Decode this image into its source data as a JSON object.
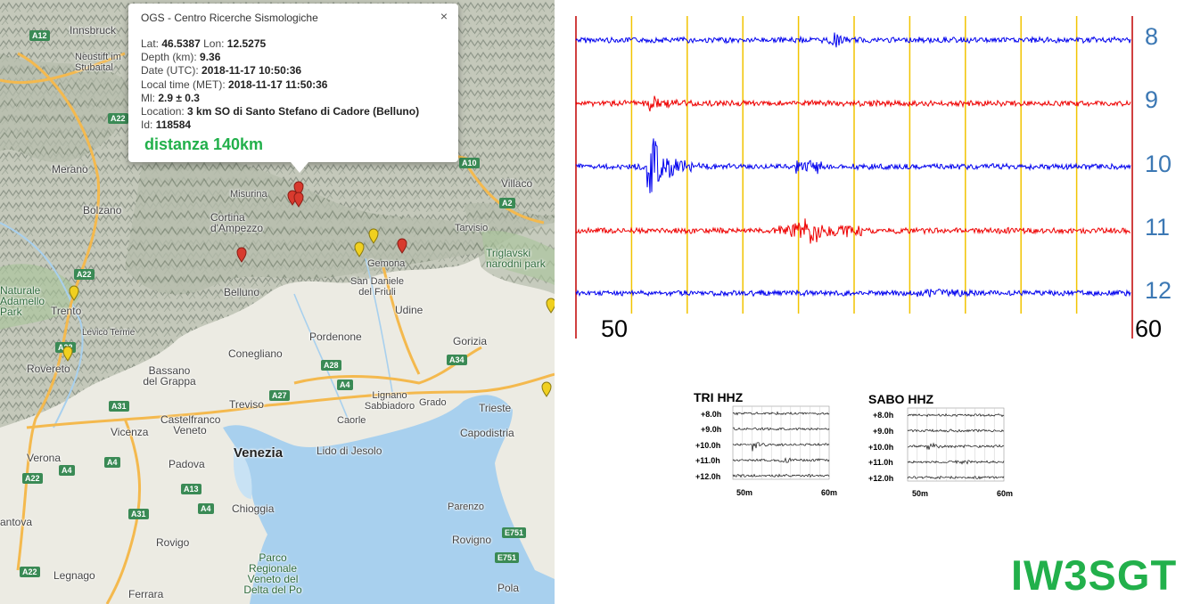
{
  "map": {
    "places": [
      {
        "name": "Innsbruck",
        "cls": ""
      },
      {
        "name": "Neustift im Stubaital",
        "cls": ""
      },
      {
        "name": "Merano",
        "cls": ""
      },
      {
        "name": "Bolzano",
        "cls": ""
      },
      {
        "name": "Cortina d'Ampezzo",
        "cls": ""
      },
      {
        "name": "Misurina",
        "cls": ""
      },
      {
        "name": "Villaco",
        "cls": ""
      },
      {
        "name": "Tarvisio",
        "cls": ""
      },
      {
        "name": "Triglavski narodni park",
        "cls": "green"
      },
      {
        "name": "Trento",
        "cls": ""
      },
      {
        "name": "Rovereto",
        "cls": ""
      },
      {
        "name": "Belluno",
        "cls": ""
      },
      {
        "name": "Gemona",
        "cls": ""
      },
      {
        "name": "San Daniele del Friuli",
        "cls": ""
      },
      {
        "name": "Udine",
        "cls": ""
      },
      {
        "name": "Pordenone",
        "cls": ""
      },
      {
        "name": "Conegliano",
        "cls": ""
      },
      {
        "name": "Gorizia",
        "cls": ""
      },
      {
        "name": "Bassano del Grappa",
        "cls": ""
      },
      {
        "name": "Treviso",
        "cls": ""
      },
      {
        "name": "Lignano Sabbiadoro",
        "cls": ""
      },
      {
        "name": "Grado",
        "cls": ""
      },
      {
        "name": "Trieste",
        "cls": ""
      },
      {
        "name": "Caorle",
        "cls": ""
      },
      {
        "name": "Castelfranco Veneto",
        "cls": ""
      },
      {
        "name": "Vicenza",
        "cls": ""
      },
      {
        "name": "Capodistria",
        "cls": ""
      },
      {
        "name": "Lido di Jesolo",
        "cls": ""
      },
      {
        "name": "Verona",
        "cls": ""
      },
      {
        "name": "Padova",
        "cls": ""
      },
      {
        "name": "Venezia",
        "cls": "big"
      },
      {
        "name": "Chioggia",
        "cls": ""
      },
      {
        "name": "Parenzo",
        "cls": ""
      },
      {
        "name": "Rovigno",
        "cls": ""
      },
      {
        "name": "Rovigo",
        "cls": ""
      },
      {
        "name": "Parco Regionale Veneto del Delta del Po",
        "cls": "green"
      },
      {
        "name": "Ferrara",
        "cls": ""
      },
      {
        "name": "Pola",
        "cls": ""
      },
      {
        "name": "Legnago",
        "cls": ""
      },
      {
        "name": "Naturale Adamello Park",
        "cls": "green"
      },
      {
        "name": "Levico Terme",
        "cls": ""
      },
      {
        "name": "antova",
        "cls": ""
      }
    ],
    "shields": [
      "A12",
      "A22",
      "A22",
      "A22",
      "A22",
      "A10",
      "A2",
      "A28",
      "A4",
      "A27",
      "A34",
      "A31",
      "A4",
      "A4",
      "A4",
      "A13",
      "A31",
      "A22",
      "E751",
      "E751"
    ],
    "colors": {
      "marker_red": "#d83a2e",
      "marker_yellow": "#f0d020",
      "sea": "#a8d0ee",
      "land": "#ebe9e0",
      "mountains": "#b8bdb0"
    },
    "info_window": {
      "title": "OGS - Centro Ricerche Sismologiche",
      "close": "×",
      "lat_label": "Lat:",
      "lat": "46.5387",
      "lon_label": "Lon:",
      "lon": "12.5275",
      "depth_label": "Depth (km):",
      "depth": "9.36",
      "date_label": "Date (UTC):",
      "date": "2018-11-17 10:50:36",
      "local_label": "Local time (MET):",
      "local": "2018-11-17 11:50:36",
      "ml_label": "Ml:",
      "ml": "2.9 ± 0.3",
      "location_label": "Location:",
      "location": "3 km SO di Santo Stefano di Cadore (Belluno)",
      "id_label": "Id:",
      "id": "118584",
      "distance": "distanza 140km"
    }
  },
  "seismogram": {
    "hour_labels": [
      "8",
      "9",
      "10",
      "11",
      "12"
    ],
    "trace_colors": [
      "#0000ee",
      "#ee0000",
      "#0000ee",
      "#ee0000",
      "#0000ee"
    ],
    "minute_start": "50",
    "minute_end": "60",
    "colors": {
      "minute_grid": "#f2c400",
      "edge_grid": "#c00000",
      "hour_label": "#3c78b4"
    }
  },
  "mini_plots": [
    {
      "title": "TRI HHZ",
      "rows": [
        "+8.0h",
        "+9.0h",
        "+10.0h",
        "+11.0h",
        "+12.0h"
      ],
      "x_start": "50m",
      "x_end": "60m"
    },
    {
      "title": "SABO HHZ",
      "rows": [
        "+8.0h",
        "+9.0h",
        "+10.0h",
        "+11.0h",
        "+12.0h"
      ],
      "x_start": "50m",
      "x_end": "60m"
    }
  ],
  "callsign": "IW3SGT"
}
